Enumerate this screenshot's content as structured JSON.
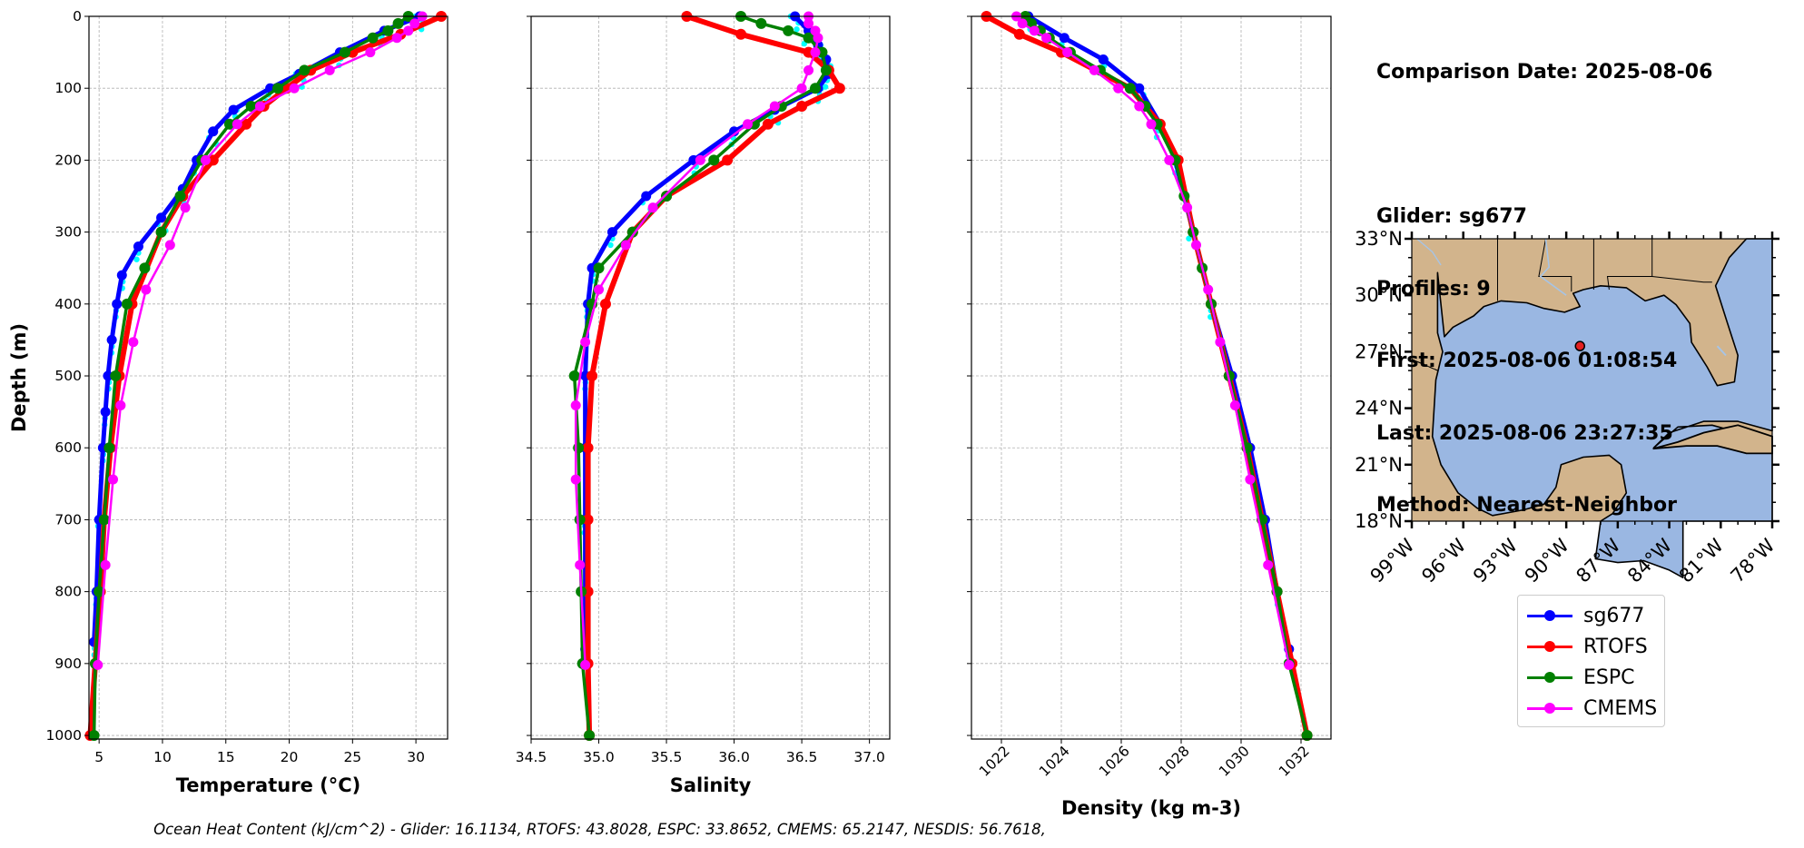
{
  "colors": {
    "sg677": "#0000ff",
    "RTOFS": "#ff0000",
    "ESPC": "#008000",
    "CMEMS": "#ff00ff",
    "glider_raw": "#00ffff",
    "land": "#d2b48c",
    "ocean": "#9ab7e2"
  },
  "info": {
    "comparison_date": "Comparison Date: 2025-08-06",
    "glider": "Glider: sg677",
    "profiles": "Profiles: 9",
    "first": "First: 2025-08-06 01:08:54",
    "last": "Last: 2025-08-06 23:27:35",
    "method": "Method: Nearest-Neighbor"
  },
  "legend": [
    {
      "label": "sg677",
      "color": "#0000ff"
    },
    {
      "label": "RTOFS",
      "color": "#ff0000"
    },
    {
      "label": "ESPC",
      "color": "#008000"
    },
    {
      "label": "CMEMS",
      "color": "#ff00ff"
    }
  ],
  "caption": "Ocean Heat Content (kJ/cm^2) - Glider: 16.1134,  RTOFS: 43.8028,  ESPC: 33.8652,  CMEMS: 65.2147,  NESDIS: 56.7618,",
  "map": {
    "lat_labels": [
      "33°N",
      "30°N",
      "27°N",
      "24°N",
      "21°N",
      "18°N"
    ],
    "lat_values": [
      33,
      30,
      27,
      24,
      21,
      18
    ],
    "lon_labels": [
      "99°W",
      "96°W",
      "93°W",
      "90°W",
      "87°W",
      "84°W",
      "81°W",
      "78°W"
    ],
    "lon_values": [
      -99,
      -96,
      -93,
      -90,
      -87,
      -84,
      -81,
      -78
    ],
    "glider_location": {
      "lon": -89.2,
      "lat": 27.3
    }
  },
  "chart_data": [
    {
      "type": "line",
      "xlabel": "Temperature (°C)",
      "ylabel": "Depth (m)",
      "xlim": [
        4.2,
        32.5
      ],
      "ylim": [
        1005,
        0
      ],
      "xticks": [
        5,
        10,
        15,
        20,
        25,
        30
      ],
      "yticks": [
        0,
        100,
        200,
        300,
        400,
        500,
        600,
        700,
        800,
        900,
        1000
      ],
      "grid": true,
      "series": [
        {
          "name": "sg677",
          "depth": [
            0,
            20,
            50,
            80,
            100,
            130,
            160,
            200,
            240,
            280,
            320,
            360,
            400,
            450,
            500,
            550,
            600,
            700,
            800,
            870
          ],
          "values": [
            30.3,
            27.5,
            24.0,
            20.8,
            18.5,
            15.6,
            14.0,
            12.7,
            11.6,
            9.9,
            8.1,
            6.8,
            6.4,
            6.0,
            5.7,
            5.5,
            5.3,
            5.0,
            4.8,
            4.6
          ]
        },
        {
          "name": "RTOFS",
          "depth": [
            0,
            25,
            50,
            75,
            100,
            125,
            150,
            200,
            250,
            300,
            400,
            500,
            600,
            700,
            800,
            900,
            1000
          ],
          "values": [
            32.0,
            28.8,
            25.0,
            21.7,
            19.8,
            18.0,
            16.6,
            14.0,
            11.6,
            9.9,
            7.6,
            6.6,
            5.9,
            5.4,
            5.1,
            4.7,
            4.3
          ]
        },
        {
          "name": "ESPC",
          "depth": [
            0,
            10,
            20,
            30,
            50,
            75,
            100,
            125,
            150,
            200,
            250,
            300,
            350,
            400,
            500,
            600,
            700,
            800,
            900,
            1000
          ],
          "values": [
            29.4,
            28.6,
            27.8,
            26.6,
            24.4,
            21.2,
            19.1,
            17.0,
            15.3,
            13.1,
            11.4,
            9.9,
            8.6,
            7.2,
            6.3,
            5.8,
            5.4,
            5.0,
            4.7,
            4.6
          ]
        },
        {
          "name": "CMEMS",
          "depth": [
            0,
            10,
            20,
            30,
            50,
            75,
            100,
            125,
            150,
            200,
            266,
            318,
            380,
            453,
            541,
            644,
            763,
            902
          ],
          "values": [
            30.5,
            29.9,
            29.4,
            28.5,
            26.4,
            23.2,
            20.4,
            17.7,
            15.9,
            13.4,
            11.8,
            10.6,
            8.7,
            7.7,
            6.7,
            6.1,
            5.5,
            4.9
          ]
        }
      ]
    },
    {
      "type": "line",
      "xlabel": "Salinity",
      "xlim": [
        34.5,
        37.15
      ],
      "ylim": [
        1005,
        0
      ],
      "xticks": [
        34.5,
        35.0,
        35.5,
        36.0,
        36.5,
        37.0
      ],
      "grid": true,
      "series": [
        {
          "name": "sg677",
          "depth": [
            0,
            20,
            40,
            60,
            80,
            100,
            130,
            160,
            200,
            250,
            300,
            350,
            400,
            500,
            600,
            700,
            800,
            880
          ],
          "values": [
            36.45,
            36.55,
            36.62,
            36.68,
            36.7,
            36.62,
            36.3,
            36.0,
            35.7,
            35.35,
            35.1,
            34.95,
            34.92,
            34.9,
            34.9,
            34.9,
            34.9,
            34.9
          ]
        },
        {
          "name": "RTOFS",
          "depth": [
            0,
            25,
            50,
            75,
            100,
            125,
            150,
            200,
            250,
            300,
            400,
            500,
            600,
            700,
            800,
            900,
            1000
          ],
          "values": [
            35.65,
            36.05,
            36.55,
            36.7,
            36.78,
            36.5,
            36.25,
            35.95,
            35.5,
            35.25,
            35.05,
            34.95,
            34.92,
            34.92,
            34.92,
            34.92,
            34.93
          ]
        },
        {
          "name": "ESPC",
          "depth": [
            0,
            10,
            20,
            30,
            50,
            75,
            100,
            125,
            150,
            200,
            250,
            300,
            350,
            400,
            500,
            600,
            700,
            800,
            900,
            1000
          ],
          "values": [
            36.05,
            36.2,
            36.4,
            36.55,
            36.65,
            36.68,
            36.6,
            36.35,
            36.15,
            35.85,
            35.5,
            35.25,
            35.0,
            34.95,
            34.82,
            34.85,
            34.86,
            34.87,
            34.88,
            34.93
          ]
        },
        {
          "name": "CMEMS",
          "depth": [
            0,
            10,
            20,
            30,
            50,
            75,
            100,
            125,
            150,
            200,
            266,
            318,
            380,
            453,
            541,
            644,
            763,
            902
          ],
          "values": [
            36.55,
            36.55,
            36.6,
            36.62,
            36.6,
            36.55,
            36.5,
            36.3,
            36.1,
            35.75,
            35.4,
            35.2,
            35.0,
            34.9,
            34.83,
            34.83,
            34.86,
            34.9
          ]
        }
      ]
    },
    {
      "type": "line",
      "xlabel": "Density (kg m-3)",
      "xlim": [
        1021.0,
        1033.0
      ],
      "ylim": [
        1005,
        0
      ],
      "xticks": [
        1022,
        1024,
        1026,
        1028,
        1030,
        1032
      ],
      "grid": true,
      "series": [
        {
          "name": "sg677",
          "depth": [
            0,
            30,
            60,
            100,
            150,
            200,
            300,
            400,
            500,
            600,
            700,
            800,
            880
          ],
          "values": [
            1022.9,
            1024.1,
            1025.4,
            1026.6,
            1027.3,
            1027.8,
            1028.4,
            1029.0,
            1029.7,
            1030.3,
            1030.8,
            1031.2,
            1031.6
          ]
        },
        {
          "name": "RTOFS",
          "depth": [
            0,
            25,
            50,
            100,
            150,
            200,
            300,
            400,
            500,
            600,
            700,
            800,
            900,
            1000
          ],
          "values": [
            1021.5,
            1022.6,
            1024.0,
            1026.3,
            1027.3,
            1027.9,
            1028.4,
            1029.0,
            1029.6,
            1030.2,
            1030.7,
            1031.2,
            1031.7,
            1032.2
          ]
        },
        {
          "name": "ESPC",
          "depth": [
            0,
            10,
            20,
            30,
            50,
            75,
            100,
            125,
            150,
            200,
            250,
            300,
            350,
            400,
            500,
            600,
            700,
            800,
            900,
            1000
          ],
          "values": [
            1022.8,
            1023.0,
            1023.3,
            1023.6,
            1024.3,
            1025.3,
            1026.3,
            1026.8,
            1027.2,
            1027.8,
            1028.1,
            1028.4,
            1028.7,
            1029.0,
            1029.6,
            1030.2,
            1030.7,
            1031.2,
            1031.6,
            1032.2
          ]
        },
        {
          "name": "CMEMS",
          "depth": [
            0,
            10,
            20,
            30,
            50,
            75,
            100,
            125,
            150,
            200,
            266,
            318,
            380,
            453,
            541,
            644,
            763,
            902
          ],
          "values": [
            1022.5,
            1022.7,
            1023.1,
            1023.5,
            1024.2,
            1025.1,
            1025.9,
            1026.6,
            1027.0,
            1027.6,
            1028.2,
            1028.5,
            1028.9,
            1029.3,
            1029.8,
            1030.3,
            1030.9,
            1031.6
          ]
        }
      ]
    }
  ]
}
